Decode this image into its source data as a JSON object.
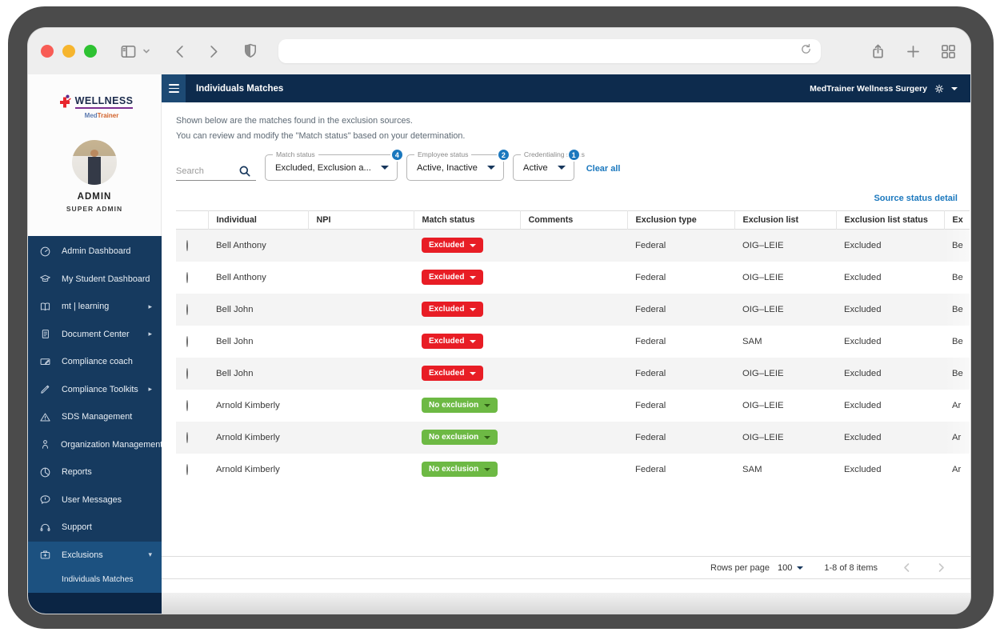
{
  "sidebar": {
    "brand": "WELLNESS",
    "brand_sub_1": "Med",
    "brand_sub_2": "Trainer",
    "profile_name": "ADMIN",
    "profile_role": "SUPER ADMIN",
    "items": [
      {
        "label": "Admin Dashboard",
        "icon": "gauge",
        "arrow": ""
      },
      {
        "label": "My Student Dashboard",
        "icon": "grad-cap",
        "arrow": ""
      },
      {
        "label": "mt | learning",
        "icon": "book",
        "arrow": "right"
      },
      {
        "label": "Document Center",
        "icon": "document",
        "arrow": "right"
      },
      {
        "label": "Compliance coach",
        "icon": "coach",
        "arrow": ""
      },
      {
        "label": "Compliance Toolkits",
        "icon": "tool",
        "arrow": "right"
      },
      {
        "label": "SDS Management",
        "icon": "warning",
        "arrow": ""
      },
      {
        "label": "Organization Management",
        "icon": "person",
        "arrow": "right"
      },
      {
        "label": "Reports",
        "icon": "pie",
        "arrow": ""
      },
      {
        "label": "User Messages",
        "icon": "message",
        "arrow": ""
      },
      {
        "label": "Support",
        "icon": "headset",
        "arrow": ""
      },
      {
        "label": "Exclusions",
        "icon": "case",
        "arrow": "down",
        "active": true
      }
    ],
    "active_subitem": "Individuals Matches"
  },
  "appbar": {
    "title": "Individuals Matches",
    "org": "MedTrainer Wellness Surgery"
  },
  "intro": {
    "line1": "Shown below are the matches found in the exclusion sources.",
    "line2": "You can review and modify the \"Match status\" based on your determination."
  },
  "filters": {
    "search_placeholder": "Search",
    "dropdowns": [
      {
        "label": "Match status",
        "value": "Excluded, Exclusion a...",
        "badge": "4"
      },
      {
        "label": "Employee status",
        "value": "Active, Inactive",
        "badge": "2"
      },
      {
        "label": "Credentialing status",
        "value": "Active",
        "badge": "1"
      }
    ],
    "clear_all": "Clear all"
  },
  "links": {
    "source_status_detail": "Source status detail"
  },
  "table": {
    "columns": [
      "Individual",
      "NPI",
      "Match status",
      "Comments",
      "Exclusion type",
      "Exclusion list",
      "Exclusion list status",
      "Ex"
    ],
    "rows": [
      {
        "individual": "Bell Anthony",
        "npi": "",
        "match_status": "Excluded",
        "match_type": "excluded",
        "comments": "",
        "exclusion_type": "Federal",
        "exclusion_list": "OIG–LEIE",
        "exclusion_list_status": "Excluded",
        "excluded_name_partial": "Be"
      },
      {
        "individual": "Bell Anthony",
        "npi": "",
        "match_status": "Excluded",
        "match_type": "excluded",
        "comments": "",
        "exclusion_type": "Federal",
        "exclusion_list": "OIG–LEIE",
        "exclusion_list_status": "Excluded",
        "excluded_name_partial": "Be"
      },
      {
        "individual": "Bell John",
        "npi": "",
        "match_status": "Excluded",
        "match_type": "excluded",
        "comments": "",
        "exclusion_type": "Federal",
        "exclusion_list": "OIG–LEIE",
        "exclusion_list_status": "Excluded",
        "excluded_name_partial": "Be"
      },
      {
        "individual": "Bell John",
        "npi": "",
        "match_status": "Excluded",
        "match_type": "excluded",
        "comments": "",
        "exclusion_type": "Federal",
        "exclusion_list": "SAM",
        "exclusion_list_status": "Excluded",
        "excluded_name_partial": "Be"
      },
      {
        "individual": "Bell John",
        "npi": "",
        "match_status": "Excluded",
        "match_type": "excluded",
        "comments": "",
        "exclusion_type": "Federal",
        "exclusion_list": "OIG–LEIE",
        "exclusion_list_status": "Excluded",
        "excluded_name_partial": "Be"
      },
      {
        "individual": "Arnold Kimberly",
        "npi": "",
        "match_status": "No exclusion",
        "match_type": "none",
        "comments": "",
        "exclusion_type": "Federal",
        "exclusion_list": "OIG–LEIE",
        "exclusion_list_status": "Excluded",
        "excluded_name_partial": "Ar"
      },
      {
        "individual": "Arnold Kimberly",
        "npi": "",
        "match_status": "No exclusion",
        "match_type": "none",
        "comments": "",
        "exclusion_type": "Federal",
        "exclusion_list": "OIG–LEIE",
        "exclusion_list_status": "Excluded",
        "excluded_name_partial": "Ar"
      },
      {
        "individual": "Arnold Kimberly",
        "npi": "",
        "match_status": "No exclusion",
        "match_type": "none",
        "comments": "",
        "exclusion_type": "Federal",
        "exclusion_list": "SAM",
        "exclusion_list_status": "Excluded",
        "excluded_name_partial": "Ar"
      }
    ]
  },
  "pagination": {
    "rows_per_page_label": "Rows per page",
    "rows_per_page_value": "100",
    "range_text": "1-8 of 8 items"
  },
  "colors": {
    "accent_blue": "#1b78be",
    "excluded_red": "#e81d25",
    "no_exclusion_green": "#6db944",
    "navy_header": "#0d2b4d",
    "sidebar_navy": "#163a5f",
    "sidebar_active": "#1c5180"
  }
}
